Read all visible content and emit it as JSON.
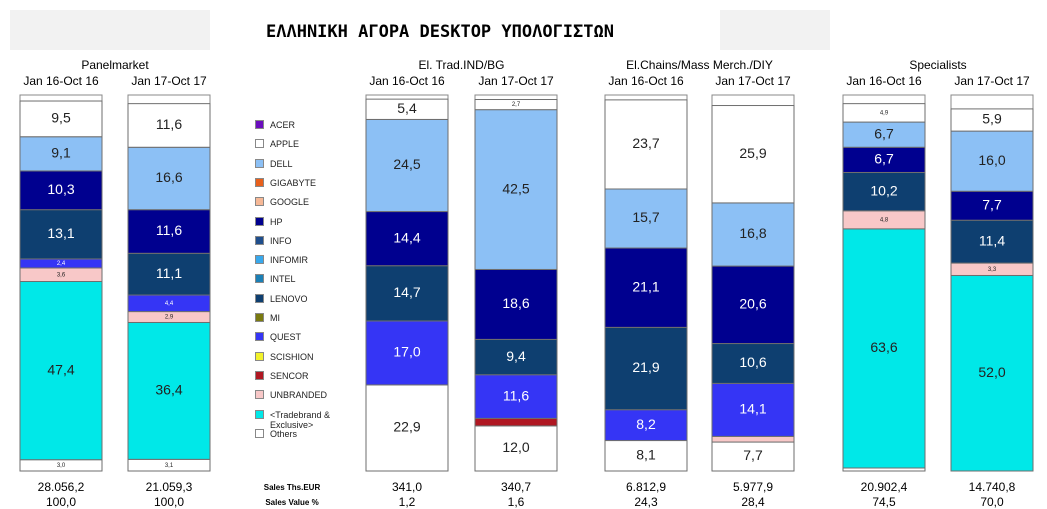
{
  "chart_data": {
    "type": "stacked_bar",
    "title": "ΕΛΛΗΝΙΚΗ ΑΓΟΡΑ DESKTOP ΥΠΟΛΟΓΙΣΤΩΝ",
    "groups": [
      "Panelmarket",
      "El. Trad.IND/BG",
      "El.Chains/Mass Merch./DIY",
      "Specialists"
    ],
    "categories": [
      "Jan 16-Oct 16",
      "Jan 17-Oct 17",
      "Jan 16-Oct 16",
      "Jan 17-Oct 17",
      "Jan 16-Oct 16",
      "Jan 17-Oct 17",
      "Jan 16-Oct 16",
      "Jan 17-Oct 17"
    ],
    "ylim": [
      0,
      100
    ],
    "series": [
      {
        "name": "ACER",
        "color": "#6a0dbd",
        "values": [
          null,
          null,
          null,
          null,
          null,
          null,
          null,
          null
        ],
        "value_labels": [
          null,
          null,
          null,
          null,
          null,
          null,
          null,
          null
        ]
      },
      {
        "name": "APPLE",
        "color": "#ffffff",
        "values": [
          9.5,
          11.6,
          5.4,
          2.7,
          23.7,
          25.9,
          4.9,
          5.9
        ],
        "value_labels": [
          "9,5",
          "11,6",
          "5,4",
          "2,7",
          "23,7",
          "25,9",
          "4,9",
          "5,9"
        ]
      },
      {
        "name": "DELL",
        "color": "#8cc0f5",
        "values": [
          9.1,
          16.6,
          24.5,
          42.5,
          15.7,
          16.8,
          6.7,
          16.0
        ],
        "value_labels": [
          "9,1",
          "16,6",
          "24,5",
          "42,5",
          "15,7",
          "16,8",
          "6,7",
          "16,0"
        ]
      },
      {
        "name": "GIGABYTE",
        "color": "#e8601c",
        "values": [
          null,
          null,
          null,
          null,
          null,
          null,
          null,
          null
        ],
        "value_labels": [
          null,
          null,
          null,
          null,
          null,
          null,
          null,
          null
        ]
      },
      {
        "name": "GOOGLE",
        "color": "#f6b896",
        "values": [
          null,
          null,
          null,
          null,
          null,
          null,
          null,
          null
        ],
        "value_labels": [
          null,
          null,
          null,
          null,
          null,
          null,
          null,
          null
        ]
      },
      {
        "name": "HP",
        "color": "#00008f",
        "values": [
          10.3,
          11.6,
          14.4,
          18.6,
          21.1,
          20.6,
          6.7,
          7.7
        ],
        "value_labels": [
          "10,3",
          "11,6",
          "14,4",
          "18,6",
          "21,1",
          "20,6",
          "6,7",
          "7,7"
        ]
      },
      {
        "name": "INFO",
        "color": "#1f4e8c",
        "values": [
          null,
          null,
          null,
          null,
          null,
          null,
          null,
          null
        ],
        "value_labels": [
          null,
          null,
          null,
          null,
          null,
          null,
          null,
          null
        ]
      },
      {
        "name": "INFOMIR",
        "color": "#38a8ec",
        "values": [
          null,
          null,
          null,
          null,
          null,
          null,
          null,
          null
        ],
        "value_labels": [
          null,
          null,
          null,
          null,
          null,
          null,
          null,
          null
        ]
      },
      {
        "name": "INTEL",
        "color": "#1b7fb5",
        "values": [
          null,
          null,
          null,
          null,
          null,
          null,
          null,
          null
        ],
        "value_labels": [
          null,
          null,
          null,
          null,
          null,
          null,
          null,
          null
        ]
      },
      {
        "name": "LENOVO",
        "color": "#0e3f70",
        "values": [
          13.1,
          11.1,
          14.7,
          9.4,
          21.9,
          10.6,
          10.2,
          11.4
        ],
        "value_labels": [
          "13,1",
          "11,1",
          "14,7",
          "9,4",
          "21,9",
          "10,6",
          "10,2",
          "11,4"
        ]
      },
      {
        "name": "MI",
        "color": "#7a7a10",
        "values": [
          null,
          null,
          null,
          null,
          null,
          null,
          null,
          null
        ],
        "value_labels": [
          null,
          null,
          null,
          null,
          null,
          null,
          null,
          null
        ]
      },
      {
        "name": "QUEST",
        "color": "#3535f5",
        "values": [
          2.4,
          4.4,
          17.0,
          11.6,
          8.2,
          14.1,
          null,
          null
        ],
        "value_labels": [
          "2,4",
          "4,4",
          "17,0",
          "11,6",
          "8,2",
          "14,1",
          null,
          null
        ]
      },
      {
        "name": "SCISHION",
        "color": "#f2f22a",
        "values": [
          null,
          null,
          null,
          null,
          null,
          null,
          null,
          null
        ],
        "value_labels": [
          null,
          null,
          null,
          null,
          null,
          null,
          null,
          null
        ]
      },
      {
        "name": "SENCOR",
        "color": "#b01722",
        "values": [
          null,
          null,
          null,
          2,
          null,
          null,
          null,
          null
        ],
        "value_labels": [
          null,
          null,
          null,
          null,
          null,
          null,
          null,
          null
        ]
      },
      {
        "name": "UNBRANDED",
        "color": "#f8c8c8",
        "values": [
          3.6,
          2.9,
          null,
          null,
          null,
          1.5,
          4.8,
          3.3
        ],
        "value_labels": [
          "3,6",
          "2,9",
          null,
          null,
          null,
          null,
          "4,8",
          "3,3"
        ]
      },
      {
        "name": "<Tradebrand & Exclusive>",
        "color": "#00e8e8",
        "values": [
          47.4,
          36.4,
          null,
          null,
          null,
          null,
          63.6,
          52.0
        ],
        "value_labels": [
          "47,4",
          "36,4",
          null,
          null,
          null,
          null,
          "63,6",
          "52,0"
        ]
      },
      {
        "name": "Others",
        "color": "#ffffff",
        "values": [
          3.0,
          3.1,
          22.9,
          12.0,
          8.1,
          7.7,
          0.8,
          null
        ],
        "value_labels": [
          "3,0",
          "3,1",
          "22,9",
          "12,0",
          "8,1",
          "7,7",
          null,
          null
        ]
      }
    ],
    "footer_rows": [
      {
        "label": "Sales Ths.EUR",
        "cells": [
          "28.056,2",
          "21.059,3",
          "341,0",
          "340,7",
          "6.812,9",
          "5.977,9",
          "20.902,4",
          "14.740,8"
        ]
      },
      {
        "label": "Sales Value %",
        "cells": [
          "100,0",
          "100,0",
          "1,2",
          "1,6",
          "24,3",
          "28,4",
          "74,5",
          "70,0"
        ]
      }
    ]
  }
}
